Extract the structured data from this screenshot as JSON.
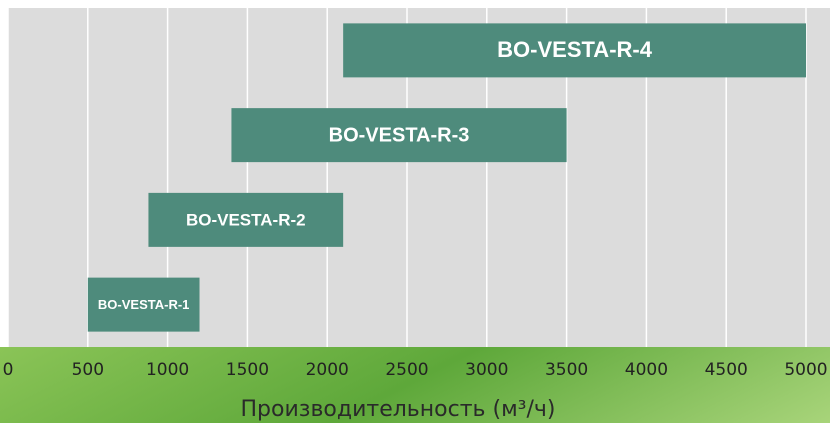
{
  "chart_data": {
    "type": "range-bar",
    "orientation": "horizontal",
    "categories": [
      "BO-VESTA-R-1",
      "BO-VESTA-R-2",
      "BO-VESTA-R-3",
      "BO-VESTA-R-4"
    ],
    "values": [
      [
        500,
        1200
      ],
      [
        880,
        2100
      ],
      [
        1400,
        3500
      ],
      [
        2100,
        5000
      ]
    ],
    "color": "#4e8b7c",
    "x_label": "Производительность (м³/ч)",
    "xlim": [
      0,
      5000
    ],
    "xticks": [
      0,
      500,
      1000,
      1500,
      2000,
      2500,
      3000,
      3500,
      4000,
      4500,
      5000
    ],
    "grid": true
  }
}
